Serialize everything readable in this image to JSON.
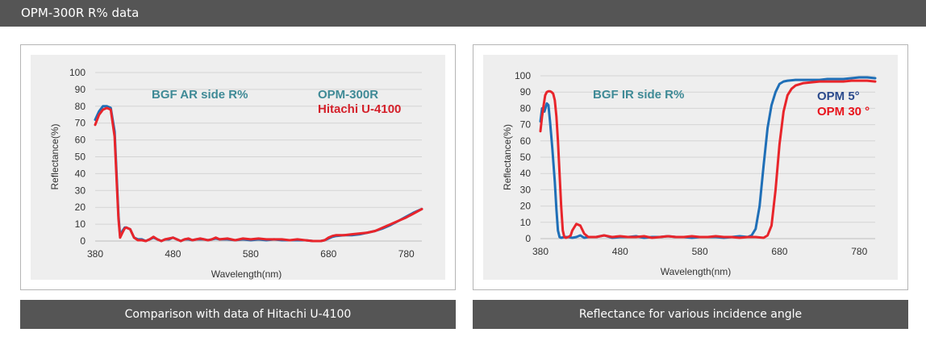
{
  "header": {
    "title": "OPM-300R R% data"
  },
  "captions": {
    "left": "Comparison with data of Hitachi U-4100",
    "right": "Reflectance for various incidence angle"
  },
  "chart_data": [
    {
      "type": "line",
      "title": "BGF AR side R%",
      "xlabel": "Wavelength(nm)",
      "ylabel": "Reflectance(%)",
      "xlim": [
        380,
        800
      ],
      "ylim": [
        0,
        100
      ],
      "xticks": [
        380,
        480,
        580,
        680,
        780
      ],
      "yticks": [
        0,
        10,
        20,
        30,
        40,
        50,
        60,
        70,
        80,
        90,
        100
      ],
      "grid": true,
      "legend_position": "top-right",
      "series": [
        {
          "name": "OPM-300R",
          "color": "#1f6fb7",
          "x": [
            380,
            385,
            390,
            395,
            400,
            405,
            408,
            410,
            412,
            415,
            418,
            420,
            425,
            430,
            435,
            440,
            445,
            450,
            455,
            460,
            465,
            470,
            475,
            480,
            485,
            490,
            495,
            500,
            505,
            510,
            515,
            520,
            525,
            530,
            535,
            540,
            550,
            560,
            570,
            580,
            590,
            600,
            610,
            620,
            630,
            640,
            650,
            660,
            670,
            675,
            680,
            685,
            690,
            700,
            710,
            720,
            730,
            740,
            750,
            760,
            770,
            780,
            790,
            800
          ],
          "y": [
            72,
            77,
            80,
            80,
            79,
            65,
            35,
            15,
            3,
            6,
            8,
            8,
            7,
            2,
            1,
            1,
            0,
            1,
            2,
            1,
            0,
            1,
            1,
            2,
            1,
            0,
            1,
            1,
            0.5,
            1,
            1,
            1,
            0.5,
            1,
            1.5,
            1,
            1,
            0.5,
            1,
            0.5,
            1,
            0.5,
            1,
            0.5,
            0.5,
            0.5,
            0.5,
            0,
            0,
            0.5,
            1.5,
            2.5,
            3,
            3.5,
            3.5,
            4,
            5,
            6,
            7.5,
            9.5,
            12,
            14.5,
            17,
            19
          ]
        },
        {
          "name": "Hitachi U-4100",
          "color": "#e8252b",
          "x": [
            380,
            385,
            390,
            395,
            400,
            405,
            408,
            410,
            412,
            415,
            418,
            420,
            425,
            430,
            435,
            440,
            445,
            450,
            455,
            460,
            465,
            470,
            475,
            480,
            485,
            490,
            495,
            500,
            505,
            510,
            515,
            520,
            525,
            530,
            535,
            540,
            550,
            560,
            570,
            580,
            590,
            600,
            610,
            620,
            630,
            640,
            650,
            660,
            670,
            675,
            680,
            685,
            690,
            700,
            710,
            720,
            730,
            740,
            750,
            760,
            770,
            780,
            790,
            800
          ],
          "y": [
            69,
            75,
            78,
            79,
            78,
            62,
            32,
            13,
            2,
            5,
            7.5,
            8,
            7,
            2,
            0.5,
            0.5,
            0,
            1,
            2.5,
            1,
            0,
            1,
            1.5,
            2,
            1,
            0,
            1,
            1.5,
            0.5,
            1,
            1.5,
            1,
            0.5,
            1,
            2,
            1,
            1.5,
            0.5,
            1.5,
            1,
            1.5,
            1,
            1,
            1,
            0.5,
            1,
            0.5,
            0,
            0,
            0.5,
            2,
            3,
            3.5,
            3.5,
            4,
            4.5,
            5,
            6,
            8,
            10,
            12,
            14,
            16.5,
            19
          ]
        }
      ]
    },
    {
      "type": "line",
      "title": "BGF IR side R%",
      "xlabel": "Wavelength(nm)",
      "ylabel": "Reflectance(%)",
      "xlim": [
        380,
        800
      ],
      "ylim": [
        0,
        100
      ],
      "xticks": [
        380,
        480,
        580,
        680,
        780
      ],
      "yticks": [
        0,
        10,
        20,
        30,
        40,
        50,
        60,
        70,
        80,
        90,
        100
      ],
      "grid": true,
      "legend_position": "top-right",
      "series": [
        {
          "name": "OPM 5°",
          "color": "#1f6fb7",
          "x": [
            380,
            382,
            385,
            388,
            390,
            392,
            395,
            398,
            400,
            402,
            404,
            406,
            410,
            415,
            420,
            425,
            430,
            435,
            440,
            450,
            460,
            470,
            480,
            490,
            500,
            510,
            520,
            530,
            540,
            550,
            560,
            570,
            580,
            590,
            600,
            610,
            620,
            630,
            640,
            645,
            650,
            655,
            660,
            665,
            670,
            675,
            680,
            685,
            690,
            700,
            710,
            720,
            730,
            740,
            750,
            760,
            770,
            780,
            790,
            800
          ],
          "y": [
            72,
            80,
            78,
            83,
            82,
            72,
            55,
            35,
            18,
            5,
            1,
            0.5,
            1,
            1,
            0.5,
            1,
            2,
            0.5,
            1,
            1,
            2,
            0.5,
            1,
            1,
            1.5,
            0.5,
            1,
            1,
            1.5,
            1,
            1,
            0.5,
            1,
            1,
            1,
            0.5,
            1,
            1.5,
            1,
            2,
            6,
            20,
            45,
            68,
            82,
            90,
            95,
            96.5,
            97,
            97.5,
            97.5,
            97.5,
            97.5,
            98,
            98,
            98,
            98.5,
            99,
            99,
            98.5
          ]
        },
        {
          "name": "OPM 30 °",
          "color": "#e8252b",
          "x": [
            380,
            382,
            384,
            386,
            388,
            390,
            392,
            394,
            396,
            398,
            400,
            402,
            404,
            406,
            408,
            410,
            412,
            415,
            418,
            420,
            425,
            430,
            435,
            440,
            450,
            460,
            470,
            480,
            490,
            500,
            510,
            520,
            530,
            540,
            550,
            560,
            570,
            580,
            590,
            600,
            610,
            620,
            630,
            640,
            650,
            660,
            665,
            670,
            675,
            680,
            685,
            690,
            695,
            700,
            710,
            720,
            730,
            740,
            750,
            760,
            770,
            780,
            790,
            800
          ],
          "y": [
            66,
            75,
            82,
            88,
            90,
            90.5,
            90.5,
            90,
            89,
            85,
            75,
            60,
            40,
            20,
            5,
            1,
            0.5,
            1,
            2,
            5,
            9,
            8,
            3,
            1,
            1,
            2,
            1,
            1.5,
            1,
            1,
            1.5,
            0.5,
            1,
            1.5,
            1,
            1,
            1.5,
            1,
            1,
            1.5,
            1,
            1,
            0.5,
            1,
            1,
            0.5,
            2,
            8,
            30,
            58,
            78,
            88,
            92,
            94,
            95.5,
            96,
            96.5,
            96.5,
            96.5,
            96.5,
            97,
            97,
            97,
            96.5
          ]
        }
      ]
    }
  ]
}
